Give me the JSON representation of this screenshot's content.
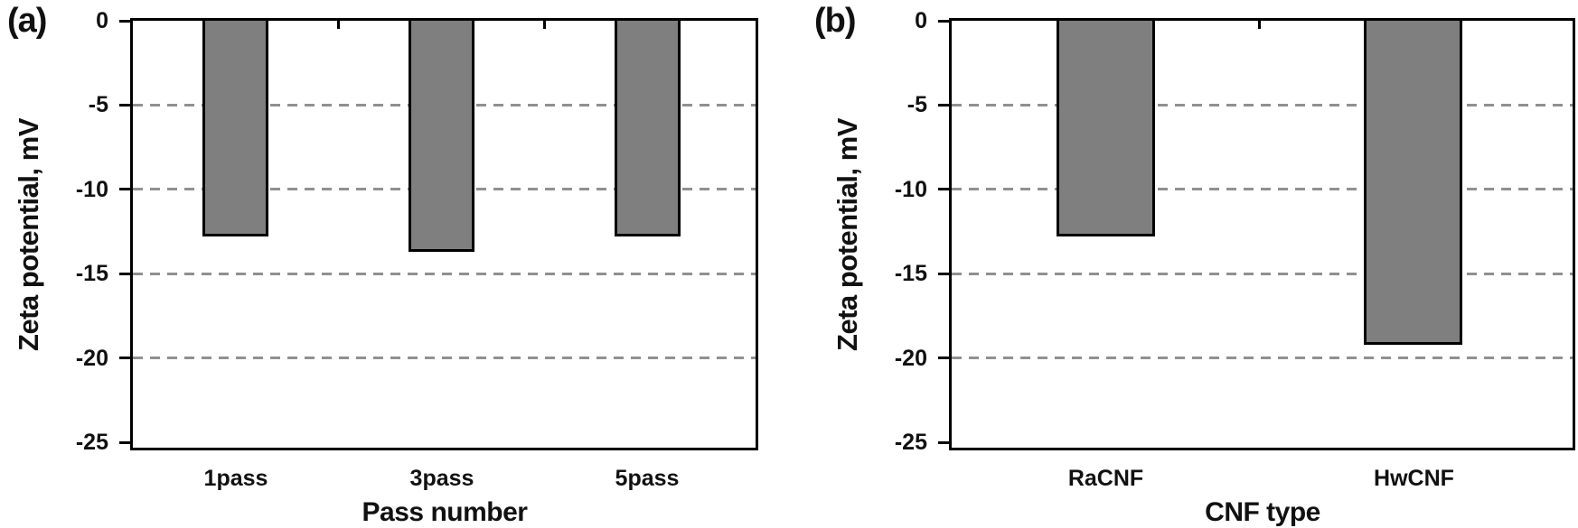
{
  "figure": {
    "background": "#ffffff"
  },
  "style": {
    "bar_fill": "#7f7f7f",
    "bar_border": "#000000",
    "grid_color": "#909090",
    "axis_color": "#000000",
    "text_color": "#111111"
  },
  "chart_data": [
    {
      "type": "bar",
      "panel_label": "(a)",
      "categories": [
        "1pass",
        "3pass",
        "5pass"
      ],
      "values": [
        -12.8,
        -13.7,
        -12.8
      ],
      "xlabel": "Pass number",
      "ylabel": "Zeta potential, mV",
      "ylim": [
        -25,
        0
      ],
      "yticks": [
        0,
        -5,
        -10,
        -15,
        -20,
        -25
      ],
      "grid": "horizontal-dashed",
      "legend": "none"
    },
    {
      "type": "bar",
      "panel_label": "(b)",
      "categories": [
        "RaCNF",
        "HwCNF"
      ],
      "values": [
        -12.8,
        -19.2
      ],
      "xlabel": "CNF type",
      "ylabel": "Zeta potential, mV",
      "ylim": [
        -25,
        0
      ],
      "yticks": [
        0,
        -5,
        -10,
        -15,
        -20,
        -25
      ],
      "grid": "horizontal-dashed",
      "legend": "none"
    }
  ]
}
